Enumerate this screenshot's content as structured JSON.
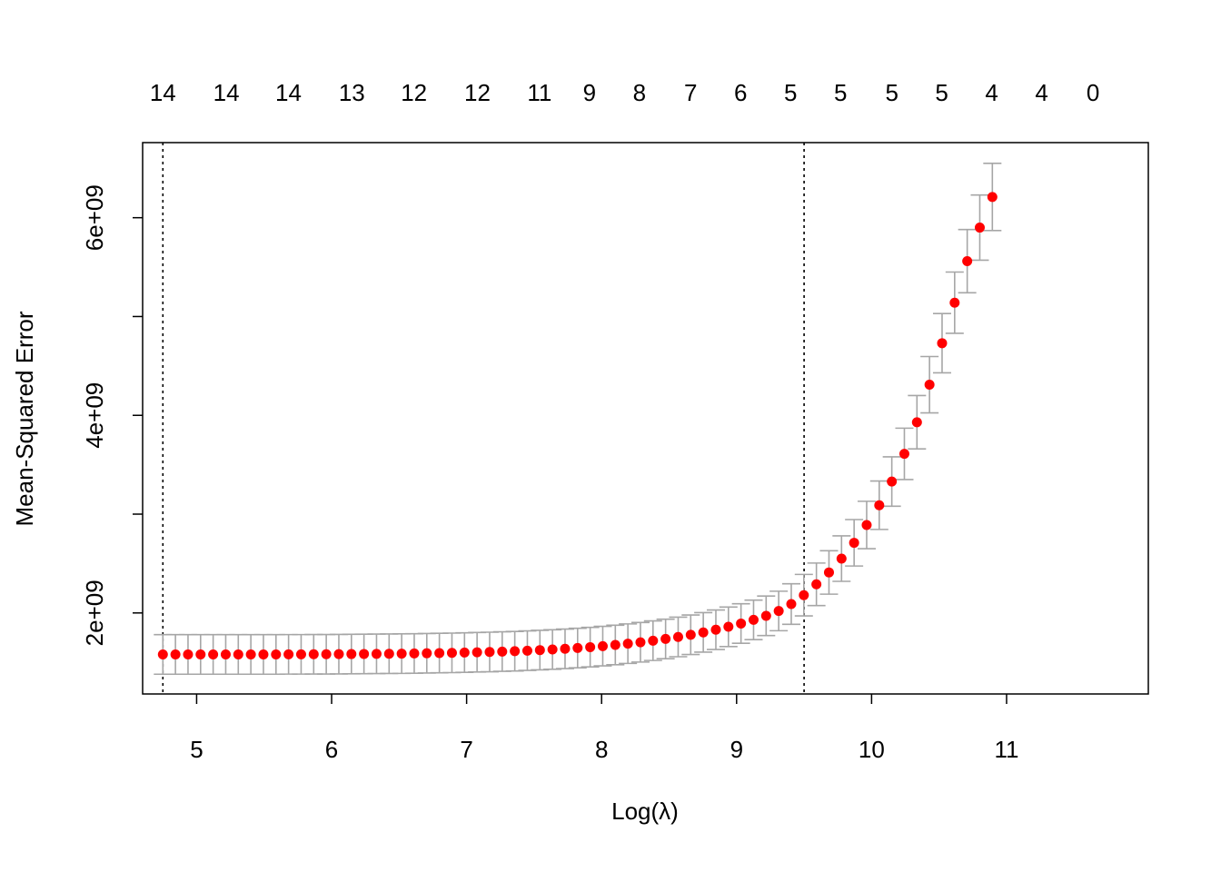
{
  "chart_data": {
    "type": "scatter",
    "xlabel": "Log(λ)",
    "ylabel": "Mean-Squared Error",
    "xlim": [
      4.6,
      12.05
    ],
    "ylim": [
      1180000000,
      6760000000
    ],
    "x_ticks": [
      5,
      6,
      7,
      8,
      9,
      10,
      11
    ],
    "x_tick_labels": [
      "5",
      "6",
      "7",
      "8",
      "9",
      "10",
      "11"
    ],
    "y_ticks": [
      2000000000,
      3000000000,
      4000000000,
      5000000000,
      6000000000
    ],
    "y_tick_labels": [
      "2e+09",
      "",
      "4e+09",
      "",
      "6e+09"
    ],
    "top_axis_labels": [
      {
        "x": 4.75,
        "label": "14"
      },
      {
        "x": 5.22,
        "label": "14"
      },
      {
        "x": 5.68,
        "label": "14"
      },
      {
        "x": 6.15,
        "label": "13"
      },
      {
        "x": 6.61,
        "label": "12"
      },
      {
        "x": 7.08,
        "label": "12"
      },
      {
        "x": 7.54,
        "label": "11"
      },
      {
        "x": 7.91,
        "label": "9"
      },
      {
        "x": 8.28,
        "label": "8"
      },
      {
        "x": 8.66,
        "label": "7"
      },
      {
        "x": 9.03,
        "label": "6"
      },
      {
        "x": 9.4,
        "label": "5"
      },
      {
        "x": 9.77,
        "label": "5"
      },
      {
        "x": 10.15,
        "label": "5"
      },
      {
        "x": 10.52,
        "label": "5"
      },
      {
        "x": 10.89,
        "label": "4"
      },
      {
        "x": 11.26,
        "label": "4"
      },
      {
        "x": 11.64,
        "label": "0"
      }
    ],
    "vlines": [
      4.75,
      9.5
    ],
    "series": [
      {
        "x_start": 4.75,
        "x_step": 0.0931,
        "mse": [
          1580000000,
          1580000000,
          1580000000,
          1580000000,
          1580000000,
          1580000000,
          1580000000,
          1580000000,
          1580000000,
          1580000000,
          1581000000,
          1581000000,
          1582000000,
          1582000000,
          1583000000,
          1584000000,
          1585000000,
          1586000000,
          1587000000,
          1588000000,
          1590000000,
          1592000000,
          1594000000,
          1596000000,
          1599000000,
          1602000000,
          1605000000,
          1609000000,
          1613000000,
          1618000000,
          1624000000,
          1630000000,
          1637000000,
          1645000000,
          1654000000,
          1664000000,
          1676000000,
          1689000000,
          1703000000,
          1719000000,
          1737000000,
          1757000000,
          1779000000,
          1803000000,
          1830000000,
          1860000000,
          1893000000,
          1930000000,
          1971000000,
          2020000000,
          2090000000,
          2180000000,
          2290000000,
          2410000000,
          2550000000,
          2710000000,
          2890000000,
          3090000000,
          3330000000,
          3610000000,
          3930000000,
          4310000000,
          4730000000,
          5140000000,
          5560000000,
          5900000000,
          6210000000
        ],
        "se": [
          200000000,
          200000000,
          200000000,
          200000000,
          200000000,
          200000000,
          200000000,
          200000000,
          200000000,
          200000000,
          200000000,
          200000000,
          200000000,
          200000000,
          200000000,
          200000000,
          200000000,
          200000000,
          200000000,
          200000000,
          200000000,
          200000000,
          200000000,
          200000000,
          200000000,
          200000000,
          200000000,
          200000000,
          200000000,
          200000000,
          200000000,
          200000000,
          200000000,
          200000000,
          200000000,
          200000000,
          200000000,
          200000000,
          200000000,
          200000000,
          200000000,
          200000000,
          200000000,
          200000000,
          200000000,
          200000000,
          200000000,
          200000000,
          200000000,
          200000000,
          205000000,
          210000000,
          215000000,
          220000000,
          230000000,
          235000000,
          240000000,
          245000000,
          250000000,
          260000000,
          270000000,
          285000000,
          300000000,
          310000000,
          320000000,
          330000000,
          340000000
        ]
      }
    ]
  }
}
